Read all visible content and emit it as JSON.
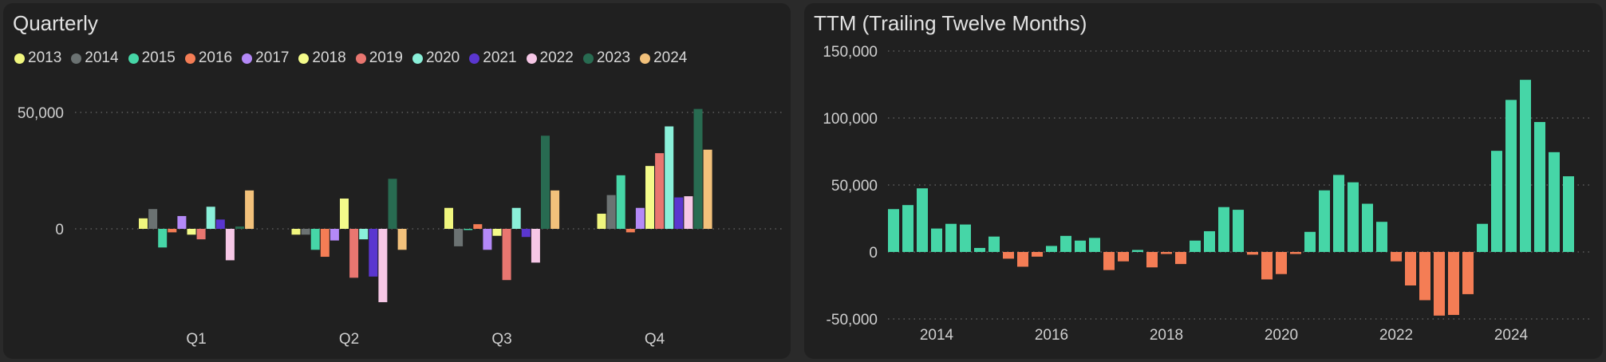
{
  "chart_data": [
    {
      "type": "bar",
      "title": "Quarterly",
      "categories": [
        "Q1",
        "Q2",
        "Q3",
        "Q4"
      ],
      "ylabel": "",
      "ylim": [
        -32000,
        55000
      ],
      "yticks": [
        0,
        50000
      ],
      "ytick_labels": [
        "0",
        "50,000"
      ],
      "legend_position": "top-left",
      "grid": "dotted-horizontal",
      "series": [
        {
          "name": "2013",
          "color": "#f0f67e",
          "values": [
            4500,
            -2500,
            9000,
            6500
          ]
        },
        {
          "name": "2014",
          "color": "#6b7272",
          "values": [
            8500,
            -2500,
            -7500,
            14500
          ]
        },
        {
          "name": "2015",
          "color": "#46d6a7",
          "values": [
            -8000,
            -9000,
            -500,
            23000
          ]
        },
        {
          "name": "2016",
          "color": "#f47d55",
          "values": [
            -1500,
            -12000,
            2000,
            -1500
          ]
        },
        {
          "name": "2017",
          "color": "#b489f7",
          "values": [
            5500,
            -5000,
            -9000,
            9000
          ]
        },
        {
          "name": "2018",
          "color": "#f4fb8a",
          "values": [
            -2500,
            13000,
            -3000,
            27000
          ]
        },
        {
          "name": "2019",
          "color": "#e97670",
          "values": [
            -4500,
            -21000,
            -22000,
            32500
          ]
        },
        {
          "name": "2020",
          "color": "#8af0d9",
          "values": [
            9500,
            -4500,
            9000,
            44000
          ]
        },
        {
          "name": "2021",
          "color": "#5a36cf",
          "values": [
            4000,
            -20500,
            -3500,
            13500
          ]
        },
        {
          "name": "2022",
          "color": "#f6c7e6",
          "values": [
            -13500,
            -31500,
            -14500,
            14000
          ]
        },
        {
          "name": "2023",
          "color": "#286b51",
          "values": [
            1000,
            21500,
            40000,
            51500
          ]
        },
        {
          "name": "2024",
          "color": "#f2c17b",
          "values": [
            16500,
            -9000,
            16500,
            34000
          ]
        }
      ]
    },
    {
      "type": "bar",
      "title": "TTM (Trailing Twelve Months)",
      "xlabel": "",
      "ylabel": "",
      "x_tick_labels": [
        "2014",
        "2016",
        "2018",
        "2020",
        "2022",
        "2024"
      ],
      "x_tick_positions": [
        2014,
        2016,
        2018,
        2020,
        2022,
        2024
      ],
      "xlim": [
        2013,
        2025.2
      ],
      "ylim": [
        -50000,
        150000
      ],
      "yticks": [
        -50000,
        0,
        50000,
        100000,
        150000
      ],
      "ytick_labels": [
        "-50,000",
        "0",
        "50,000",
        "100,000",
        "150,000"
      ],
      "grid": "dotted-horizontal",
      "positive_color": "#46d6a7",
      "negative_color": "#f47d55",
      "x": [
        2013.25,
        2013.5,
        2013.75,
        2014.0,
        2014.25,
        2014.5,
        2014.75,
        2015.0,
        2015.25,
        2015.5,
        2015.75,
        2016.0,
        2016.25,
        2016.5,
        2016.75,
        2017.0,
        2017.25,
        2017.5,
        2017.75,
        2018.0,
        2018.25,
        2018.5,
        2018.75,
        2019.0,
        2019.25,
        2019.5,
        2019.75,
        2020.0,
        2020.25,
        2020.5,
        2020.75,
        2021.0,
        2021.25,
        2021.5,
        2021.75,
        2022.0,
        2022.25,
        2022.5,
        2022.75,
        2023.0,
        2023.25,
        2023.5,
        2023.75,
        2024.0,
        2024.25,
        2024.5,
        2024.75,
        2025.0
      ],
      "values": [
        32000,
        35000,
        47500,
        17500,
        21000,
        20500,
        3000,
        11500,
        -5000,
        -11000,
        -3500,
        4500,
        12000,
        8500,
        10500,
        -13500,
        -7000,
        1500,
        -11500,
        -1500,
        -9000,
        8500,
        15500,
        33500,
        31500,
        -2000,
        -20500,
        -16500,
        -1500,
        15000,
        46000,
        57500,
        52000,
        36000,
        22500,
        -7000,
        -25000,
        -36000,
        -47500,
        -47000,
        -31500,
        21000,
        75500,
        113500,
        128500,
        97000,
        74500,
        56500
      ]
    }
  ]
}
